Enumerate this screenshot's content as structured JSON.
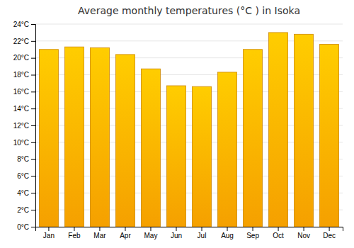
{
  "chart_data": {
    "type": "bar",
    "title": "Average monthly temperatures (°C ) in Isoka",
    "categories": [
      "Jan",
      "Feb",
      "Mar",
      "Apr",
      "May",
      "Jun",
      "Jul",
      "Aug",
      "Sep",
      "Oct",
      "Nov",
      "Dec"
    ],
    "values": [
      21.0,
      21.3,
      21.2,
      20.4,
      18.7,
      16.7,
      16.6,
      18.3,
      21.0,
      23.0,
      22.8,
      21.6
    ],
    "color": "#F5A000",
    "ylim": [
      0,
      24
    ],
    "yticks": [
      {
        "value": 0,
        "label": "0°C"
      },
      {
        "value": 2,
        "label": "2°C"
      },
      {
        "value": 4,
        "label": "4°C"
      },
      {
        "value": 6,
        "label": "6°C"
      },
      {
        "value": 8,
        "label": "8°C"
      },
      {
        "value": 10,
        "label": "10°C"
      },
      {
        "value": 12,
        "label": "12°C"
      },
      {
        "value": 14,
        "label": "14°C"
      },
      {
        "value": 16,
        "label": "16°C"
      },
      {
        "value": 18,
        "label": "18°C"
      },
      {
        "value": 20,
        "label": "20°C"
      },
      {
        "value": 22,
        "label": "22°C"
      },
      {
        "value": 24,
        "label": "24°C"
      }
    ],
    "grid": true
  }
}
